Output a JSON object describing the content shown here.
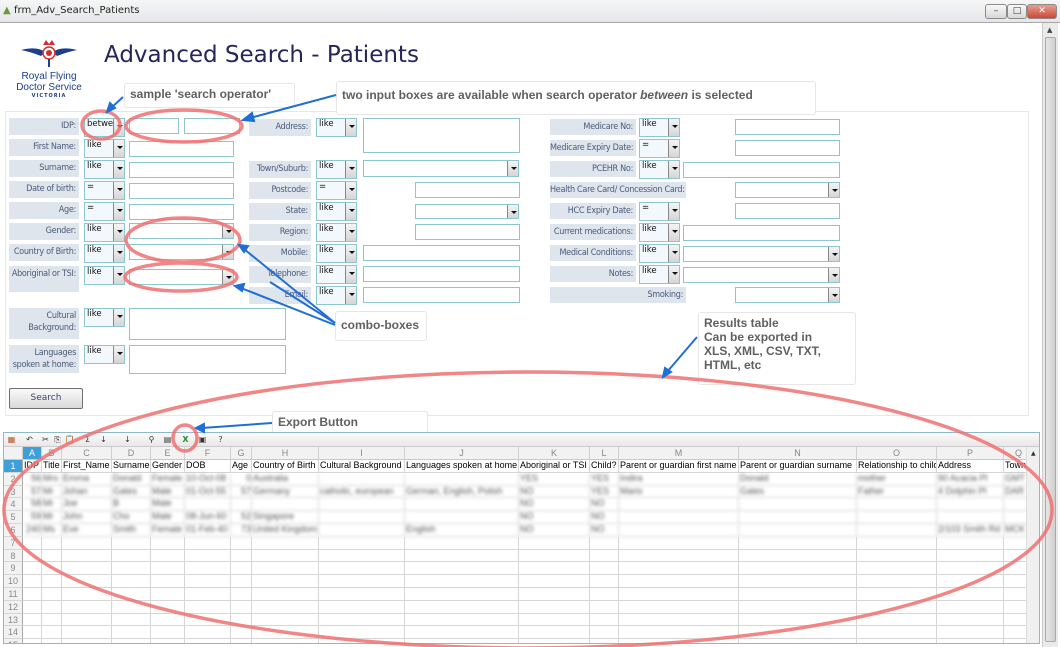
{
  "window": {
    "title": "frm_Adv_Search_Patients",
    "minimize": "–",
    "maximize": "□",
    "close": "✕"
  },
  "logo": {
    "line1": "Royal Flying",
    "line2": "Doctor Service",
    "line3": "VICTORIA"
  },
  "page_title": "Advanced Search - Patients",
  "form": {
    "left": [
      {
        "label": "IDP:",
        "op": "between"
      },
      {
        "label": "First Name:",
        "op": "like"
      },
      {
        "label": "Surname:",
        "op": "like"
      },
      {
        "label": "Date of birth:",
        "op": "="
      },
      {
        "label": "Age:",
        "op": "="
      },
      {
        "label": "Gender:",
        "op": "like"
      },
      {
        "label": "Country of Birth:",
        "op": "like"
      },
      {
        "label": "Aboriginal or TSI:",
        "op": "like"
      },
      {
        "label": "Cultural Background:",
        "op": "like"
      },
      {
        "label": "Languages spoken at home:",
        "op": "like"
      }
    ],
    "middle": [
      {
        "label": "Address:",
        "op": "like"
      },
      {
        "label": "Town/Suburb:",
        "op": "like"
      },
      {
        "label": "Postcode:",
        "op": "="
      },
      {
        "label": "State:",
        "op": "like"
      },
      {
        "label": "Region:",
        "op": "like"
      },
      {
        "label": "Mobile:",
        "op": "like"
      },
      {
        "label": "Telephone:",
        "op": "like"
      },
      {
        "label": "Email:",
        "op": "like"
      }
    ],
    "right": [
      {
        "label": "Medicare No:",
        "op": "like"
      },
      {
        "label": "Medicare Expiry Date:",
        "op": "="
      },
      {
        "label": "PCEHR No:",
        "op": "like"
      },
      {
        "label": "Health Care Card/ Concession Card:",
        "op": ""
      },
      {
        "label": "HCC Expiry Date:",
        "op": "="
      },
      {
        "label": "Current medications:",
        "op": "like"
      },
      {
        "label": "Medical Conditions:",
        "op": "like"
      },
      {
        "label": "Notes:",
        "op": "like"
      },
      {
        "label": "Smoking:",
        "op": ""
      }
    ],
    "search_label": "Search"
  },
  "annotations": {
    "search_operator": "sample 'search operator'",
    "two_inputs_pre": "two input boxes are available when search operator ",
    "two_inputs_em": "between",
    "two_inputs_post": " is selected",
    "combo_boxes": "combo-boxes",
    "results_l1": "Results table",
    "results_l2": "Can be exported in",
    "results_l3": "XLS, XML, CSV, TXT,",
    "results_l4": "HTML, etc",
    "export_button": "Export Button",
    "highlight_color": "#f07070",
    "arrow_color": "#1f6fd6"
  },
  "sheet": {
    "toolbar": [
      "app-icon",
      "undo-icon",
      "cut-icon",
      "copy-icon",
      "paste-icon",
      "sum-icon",
      "sort-asc-icon",
      "sort-desc-icon",
      "filter-icon",
      "properties-icon",
      "export-icon",
      "print-icon",
      "help-icon"
    ],
    "columns": [
      "A",
      "B",
      "C",
      "D",
      "E",
      "F",
      "G",
      "H",
      "I",
      "J",
      "K",
      "L",
      "M",
      "N",
      "O",
      "P",
      "Q"
    ],
    "headers": [
      "IDP",
      "Title",
      "First_Name",
      "Surname",
      "Gender",
      "DOB",
      "Age",
      "Country of Birth",
      "Cultural Background",
      "Languages spoken at home",
      "Aboriginal or TSI",
      "Child?",
      "Parent or guardian first name",
      "Parent or guardian surname",
      "Relationship to child",
      "Address",
      "Town"
    ],
    "rows": [
      [
        "56",
        "Mrs",
        "Emma",
        "Donald",
        "Female",
        "10-Oct-08",
        "0",
        "Australia",
        "",
        "",
        "YES",
        "YES",
        "Indira",
        "Donald",
        "mother",
        "90 Acacia Pl",
        "GMT"
      ],
      [
        "57",
        "Mr",
        "Johan",
        "Gates",
        "Male",
        "01-Oct-55",
        "57",
        "Germany",
        "catholic, european",
        "German, English, Polish",
        "NO",
        "YES",
        "Mario",
        "Gates",
        "Father",
        "4 Dolphin Pl",
        "DAR"
      ],
      [
        "58",
        "Mr",
        "Joe",
        "B",
        "Male",
        "",
        "",
        "",
        "",
        "",
        "NO",
        "NO",
        "",
        "",
        "",
        "",
        ""
      ],
      [
        "59",
        "Mr",
        "John",
        "Cho",
        "Male",
        "08-Jun-60",
        "52",
        "Singapore",
        "",
        "",
        "NO",
        "NO",
        "",
        "",
        "",
        "",
        ""
      ],
      [
        "240",
        "Ms",
        "Eve",
        "Smith",
        "Female",
        "01-Feb-40",
        "73",
        "United Kingdom",
        "",
        "English",
        "NO",
        "NO",
        "",
        "",
        "",
        "2/103 Smith Rd",
        "MCK"
      ]
    ],
    "row_numbers": [
      "1",
      "2",
      "3",
      "4",
      "5",
      "6",
      "7",
      "8",
      "9",
      "10",
      "11",
      "12",
      "13",
      "14",
      "15"
    ]
  }
}
